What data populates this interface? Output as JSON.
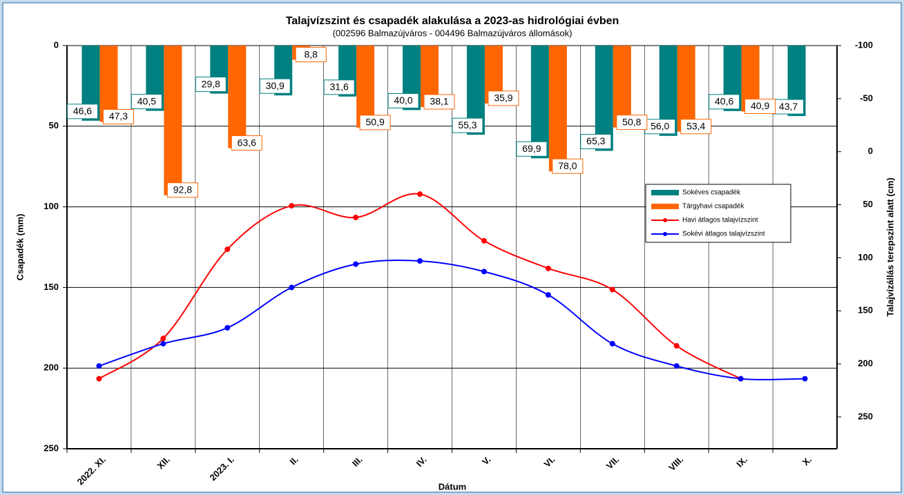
{
  "chart_data": {
    "type": "bar",
    "title": "Talajvízszint és csapadék alakulása a 2023-as hidrológiai évben",
    "subtitle": "(002596  Balmazújváros  - 004496  Balmazújváros  állomások)",
    "x_label": "Dátum",
    "y_label": "Csapadék (mm)",
    "y2_label": "Talajvízállás terepszint alatt (cm)",
    "categories": [
      "2022. XI.",
      "XII.",
      "2023. I.",
      "II.",
      "III.",
      "IV.",
      "V.",
      "VI.",
      "VII.",
      "VIII.",
      "IX.",
      "X."
    ],
    "ylim": [
      0,
      250
    ],
    "yticks": [
      0,
      50,
      100,
      150,
      200,
      250
    ],
    "y_inverted": true,
    "y2lim": [
      -100,
      280
    ],
    "y2ticks": [
      -100,
      -50,
      0,
      50,
      100,
      150,
      200,
      250
    ],
    "y2_inverted": true,
    "grid": true,
    "series": [
      {
        "name": "Sokéves csapadék",
        "type": "bar",
        "color": "#008080",
        "values": [
          46.6,
          40.5,
          29.8,
          30.9,
          31.6,
          40.0,
          55.3,
          69.9,
          65.3,
          56.0,
          40.6,
          43.7
        ],
        "value_labels": [
          "46,6",
          "40,5",
          "29,8",
          "30,9",
          "31,6",
          "40,0",
          "55,3",
          "69,9",
          "65,3",
          "56,0",
          "40,6",
          "43,7"
        ]
      },
      {
        "name": "Tárgyhavi csapadék",
        "type": "bar",
        "color": "#ff6600",
        "values": [
          47.3,
          92.8,
          63.6,
          8.8,
          50.9,
          38.1,
          35.9,
          78.0,
          50.8,
          53.4,
          40.9,
          null
        ],
        "value_labels": [
          "47,3",
          "92,8",
          "63,6",
          "8,8",
          "50,9",
          "38,1",
          "35,9",
          "78,0",
          "50,8",
          "53,4",
          "40,9",
          null
        ]
      },
      {
        "name": "Havi átlagos talajvízszint",
        "type": "line",
        "axis": "y2",
        "color": "#ff0000",
        "values": [
          214,
          176,
          92,
          51,
          62,
          40,
          84,
          110,
          130,
          183,
          214,
          null
        ]
      },
      {
        "name": "Sokévi átlagos talajvízszint",
        "type": "line",
        "axis": "y2",
        "color": "#0000ff",
        "values": [
          202,
          181,
          166,
          128,
          106,
          103,
          113,
          135,
          181,
          202,
          214,
          214
        ]
      }
    ]
  }
}
